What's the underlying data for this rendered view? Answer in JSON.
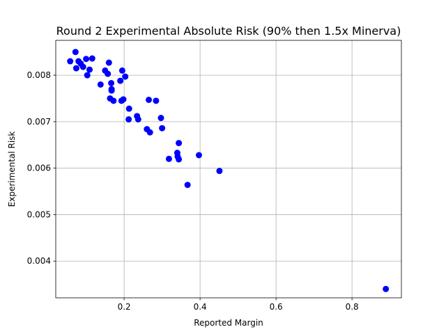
{
  "chart_data": {
    "type": "scatter",
    "title": "Round 2 Experimental Absolute Risk (90% then 1.5x Minerva)",
    "xlabel": "Reported Margin",
    "ylabel": "Experimental Risk",
    "xlim": [
      0.02,
      0.93
    ],
    "ylim": [
      0.00321,
      0.00875
    ],
    "xticks": [
      0.2,
      0.4,
      0.6,
      0.8
    ],
    "xtick_labels": [
      "0.2",
      "0.4",
      "0.6",
      "0.8"
    ],
    "yticks": [
      0.004,
      0.005,
      0.006,
      0.007,
      0.008
    ],
    "ytick_labels": [
      "0.004",
      "0.005",
      "0.006",
      "0.007",
      "0.008"
    ],
    "grid": true,
    "marker_color": "#0000ff",
    "series": [
      {
        "x": [
          0.058,
          0.072,
          0.074,
          0.08,
          0.086,
          0.092,
          0.1,
          0.103,
          0.109,
          0.116,
          0.138,
          0.15,
          0.157,
          0.16,
          0.163,
          0.166,
          0.167,
          0.167,
          0.172,
          0.19,
          0.193,
          0.195,
          0.198,
          0.203,
          0.212,
          0.213,
          0.234,
          0.237,
          0.26,
          0.265,
          0.268,
          0.284,
          0.297,
          0.3,
          0.318,
          0.34,
          0.341,
          0.344,
          0.344,
          0.367,
          0.397,
          0.451,
          0.889
        ],
        "y": [
          0.0083,
          0.0085,
          0.00815,
          0.0083,
          0.00825,
          0.00818,
          0.00835,
          0.008,
          0.00812,
          0.00836,
          0.0078,
          0.0081,
          0.00803,
          0.00827,
          0.0075,
          0.00783,
          0.0077,
          0.00767,
          0.00745,
          0.00788,
          0.00745,
          0.0081,
          0.00748,
          0.00797,
          0.00705,
          0.00728,
          0.00712,
          0.00705,
          0.00684,
          0.00747,
          0.00677,
          0.00745,
          0.00708,
          0.00686,
          0.0062,
          0.00633,
          0.00625,
          0.00619,
          0.00654,
          0.00564,
          0.00628,
          0.00594,
          0.0034
        ]
      }
    ]
  }
}
